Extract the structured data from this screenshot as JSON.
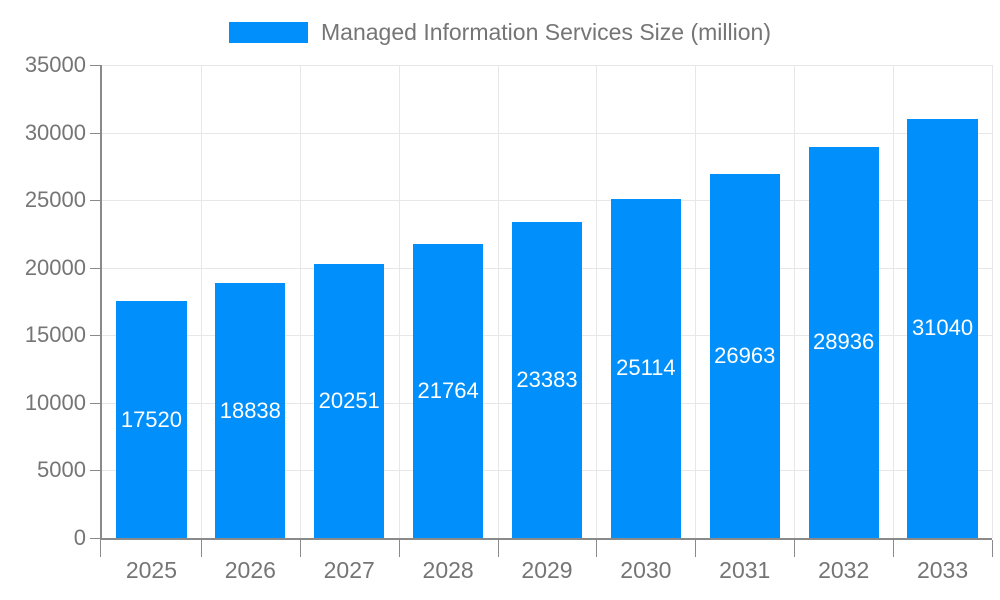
{
  "chart_data": {
    "type": "bar",
    "title": "",
    "legend": {
      "label": "Managed Information Services Size (million)",
      "position": "top"
    },
    "categories": [
      "2025",
      "2026",
      "2027",
      "2028",
      "2029",
      "2030",
      "2031",
      "2032",
      "2033"
    ],
    "series": [
      {
        "name": "Managed Information Services Size (million)",
        "values": [
          17520,
          18838,
          20251,
          21764,
          23383,
          25114,
          26963,
          28936,
          31040
        ]
      }
    ],
    "data_labels": [
      "17520",
      "18838",
      "20251",
      "21764",
      "23383",
      "25114",
      "26963",
      "28936",
      "31040"
    ],
    "xlabel": "",
    "ylabel": "",
    "ylim": [
      0,
      35000
    ],
    "ytick_step": 5000,
    "ytick_labels": [
      "0",
      "5000",
      "10000",
      "15000",
      "20000",
      "25000",
      "30000",
      "35000"
    ],
    "grid": true,
    "colors": {
      "bar": "#008FFB",
      "grid": "#e7e7e7",
      "axis": "#8a8a8a",
      "tick": "#8a8a8a",
      "axis_text": "#757575",
      "legend_text": "#757575",
      "value_label": "#ffffff",
      "background": "#ffffff"
    }
  }
}
